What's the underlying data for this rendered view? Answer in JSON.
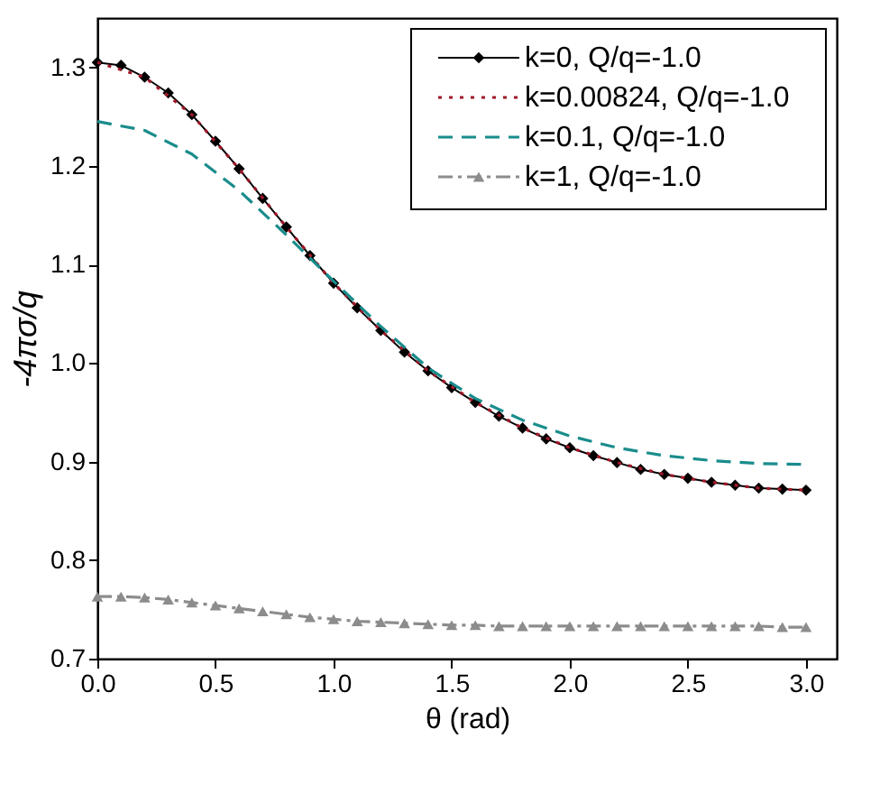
{
  "chart_data": {
    "type": "line",
    "xlabel": "θ (rad)",
    "ylabel": "-4πσ/q",
    "xlim": [
      0,
      3.13
    ],
    "ylim": [
      0.7,
      1.35
    ],
    "xticks": [
      {
        "value": 0,
        "label": "0.0"
      },
      0.5,
      {
        "value": 1,
        "label": "1.0"
      },
      1.5,
      {
        "value": 2,
        "label": "2.0"
      },
      2.5,
      {
        "value": 3,
        "label": "3.0"
      }
    ],
    "yticks": [
      0.7,
      0.8,
      0.9,
      {
        "value": 1,
        "label": "1.0"
      },
      1.1,
      1.2,
      1.3
    ],
    "grid": false,
    "legend": "top right",
    "series": [
      {
        "name": "k=0, Q/q=-1.0",
        "color": "#000000",
        "marker": "diamond",
        "line_style": "solid",
        "x": [
          0,
          0.1,
          0.2,
          0.3,
          0.4,
          0.5,
          0.6,
          0.7,
          0.8,
          0.9,
          1.0,
          1.1,
          1.2,
          1.3,
          1.4,
          1.5,
          1.6,
          1.7,
          1.8,
          1.9,
          2.0,
          2.1,
          2.2,
          2.3,
          2.4,
          2.5,
          2.6,
          2.7,
          2.8,
          2.9,
          3.0
        ],
        "values": [
          1.305,
          1.302,
          1.29,
          1.274,
          1.252,
          1.225,
          1.197,
          1.167,
          1.138,
          1.109,
          1.081,
          1.056,
          1.033,
          1.011,
          0.992,
          0.975,
          0.96,
          0.946,
          0.934,
          0.923,
          0.914,
          0.906,
          0.899,
          0.892,
          0.887,
          0.883,
          0.879,
          0.876,
          0.873,
          0.872,
          0.871
        ]
      },
      {
        "name": "k=0.00824, Q/q=-1.0",
        "color": "#a01828",
        "marker": "none",
        "line_style": "dotted",
        "x": [
          0,
          0.2,
          0.4,
          0.6,
          0.8,
          1.0,
          1.2,
          1.4,
          1.6,
          1.8,
          2.0,
          2.2,
          2.4,
          2.6,
          2.8,
          3.0
        ],
        "values": [
          1.305,
          1.29,
          1.252,
          1.197,
          1.138,
          1.081,
          1.033,
          0.992,
          0.96,
          0.934,
          0.914,
          0.899,
          0.887,
          0.879,
          0.873,
          0.871
        ]
      },
      {
        "name": "k=0.1, Q/q=-1.0",
        "color": "#1a8c8c",
        "marker": "none",
        "line_style": "dashed",
        "x": [
          0,
          0.2,
          0.4,
          0.6,
          0.8,
          1.0,
          1.2,
          1.4,
          1.6,
          1.8,
          2.0,
          2.2,
          2.4,
          2.6,
          2.8,
          3.0
        ],
        "values": [
          1.245,
          1.236,
          1.212,
          1.175,
          1.13,
          1.083,
          1.037,
          0.995,
          0.964,
          0.942,
          0.926,
          0.914,
          0.906,
          0.901,
          0.898,
          0.897
        ]
      },
      {
        "name": "k=1, Q/q=-1.0",
        "color": "#8c8c8c",
        "marker": "triangle",
        "line_style": "dashdot",
        "x": [
          0,
          0.1,
          0.2,
          0.3,
          0.4,
          0.5,
          0.6,
          0.7,
          0.8,
          0.9,
          1.0,
          1.1,
          1.2,
          1.3,
          1.4,
          1.5,
          1.6,
          1.7,
          1.8,
          1.9,
          2.0,
          2.1,
          2.2,
          2.3,
          2.4,
          2.5,
          2.6,
          2.7,
          2.8,
          2.9,
          3.0
        ],
        "values": [
          0.763,
          0.763,
          0.762,
          0.76,
          0.757,
          0.754,
          0.751,
          0.748,
          0.745,
          0.742,
          0.74,
          0.738,
          0.737,
          0.736,
          0.735,
          0.734,
          0.734,
          0.733,
          0.733,
          0.733,
          0.733,
          0.733,
          0.733,
          0.733,
          0.733,
          0.733,
          0.733,
          0.733,
          0.733,
          0.732,
          0.732
        ]
      }
    ]
  }
}
